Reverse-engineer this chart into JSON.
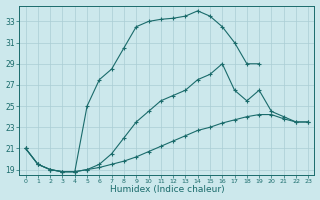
{
  "xlabel": "Humidex (Indice chaleur)",
  "background_color": "#cce8ec",
  "grid_color": "#aacdd4",
  "line_color": "#1a6b6b",
  "xlim": [
    -0.5,
    23.5
  ],
  "ylim": [
    18.5,
    34.5
  ],
  "yticks": [
    19,
    21,
    23,
    25,
    27,
    29,
    31,
    33
  ],
  "xticks": [
    0,
    1,
    2,
    3,
    4,
    5,
    6,
    7,
    8,
    9,
    10,
    11,
    12,
    13,
    14,
    15,
    16,
    17,
    18,
    19,
    20,
    21,
    22,
    23
  ],
  "curve1_x": [
    0,
    1,
    2,
    3,
    4,
    5,
    6,
    7,
    8,
    9,
    10,
    11,
    12,
    13,
    14,
    15,
    16,
    17,
    18,
    19
  ],
  "curve1_y": [
    21.0,
    19.5,
    19.0,
    18.8,
    18.8,
    25.0,
    27.5,
    28.5,
    30.5,
    32.5,
    33.0,
    33.2,
    33.3,
    33.5,
    34.0,
    33.5,
    32.5,
    31.0,
    29.0,
    29.0
  ],
  "curve2_x": [
    0,
    1,
    2,
    3,
    4,
    5,
    6,
    7,
    8,
    9,
    10,
    11,
    12,
    13,
    14,
    15,
    16,
    17,
    18,
    19,
    20,
    21,
    22,
    23
  ],
  "curve2_y": [
    21.0,
    19.5,
    19.0,
    18.8,
    18.8,
    19.0,
    19.5,
    20.5,
    22.0,
    23.5,
    24.5,
    25.5,
    26.0,
    26.5,
    27.5,
    28.0,
    29.0,
    26.5,
    25.5,
    26.5,
    24.5,
    24.0,
    23.5,
    23.5
  ],
  "curve3_x": [
    0,
    1,
    2,
    3,
    4,
    5,
    6,
    7,
    8,
    9,
    10,
    11,
    12,
    13,
    14,
    15,
    16,
    17,
    18,
    19,
    20,
    21,
    22,
    23
  ],
  "curve3_y": [
    21.0,
    19.5,
    19.0,
    18.8,
    18.8,
    19.0,
    19.2,
    19.5,
    19.8,
    20.2,
    20.7,
    21.2,
    21.7,
    22.2,
    22.7,
    23.0,
    23.4,
    23.7,
    24.0,
    24.2,
    24.2,
    23.8,
    23.5,
    23.5
  ]
}
